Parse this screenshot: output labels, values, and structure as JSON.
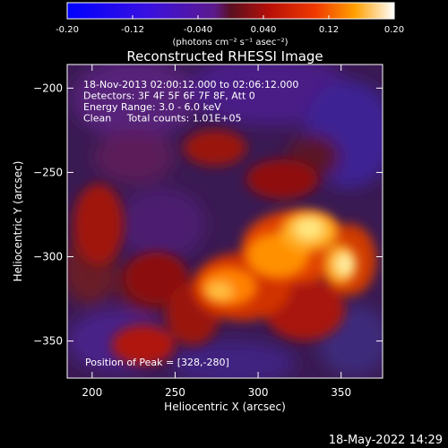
{
  "colorbar": {
    "tick_labels": [
      "-0.20",
      "-0.12",
      "-0.040",
      "0.040",
      "0.12",
      "0.20"
    ],
    "range": [
      -0.2,
      0.2
    ],
    "unit_label": "(photons cm⁻² s⁻¹ asec⁻²)"
  },
  "chart_data": {
    "type": "heatmap",
    "title": "Reconstructed RHESSI Image",
    "xlabel": "Heliocentric X (arcsec)",
    "ylabel": "Heliocentric Y (arcsec)",
    "xlim": [
      185,
      375
    ],
    "ylim": [
      -372,
      -186
    ],
    "x_ticks": [
      200,
      250,
      300,
      350
    ],
    "y_ticks": [
      -200,
      -250,
      -300,
      -350
    ],
    "x_tick_labels": [
      "200",
      "250",
      "300",
      "350"
    ],
    "y_tick_labels": [
      "−200",
      "−250",
      "−300",
      "−350"
    ],
    "info_lines": [
      "18-Nov-2013 02:00:12.000 to 02:06:12.000",
      "Detectors: 3F 4F 5F 6F 7F 8F, Att 0",
      "Energy Range: 3.0 - 6.0 keV",
      "Clean     Total counts: 1.01E+05"
    ],
    "peak_annotation": "Position of Peak = [328,-280]",
    "peak": [
      328,
      -280
    ]
  },
  "footer": {
    "timestamp": "18-May-2022 14:29"
  }
}
